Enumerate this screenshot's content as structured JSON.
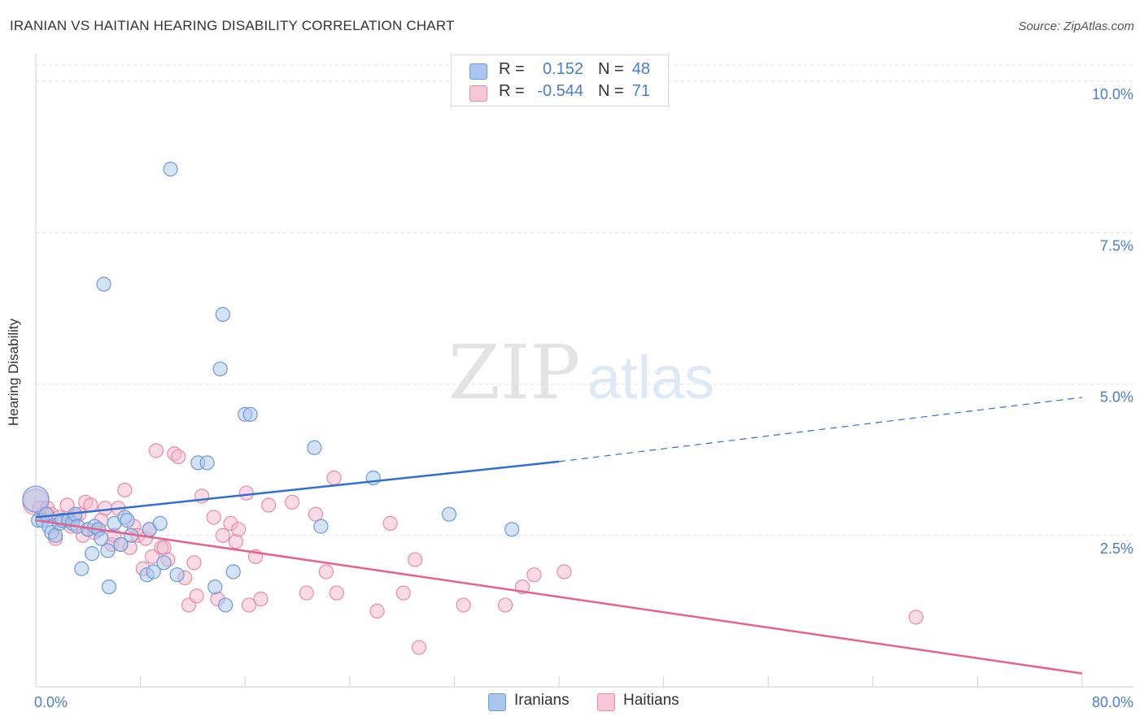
{
  "header": {
    "title": "IRANIAN VS HAITIAN HEARING DISABILITY CORRELATION CHART",
    "source": "Source: ZipAtlas.com"
  },
  "watermark": {
    "zip": "ZIP",
    "atlas": "atlas"
  },
  "colors": {
    "blue_fill": "#a9c6ee",
    "blue_stroke": "#6b9ad8",
    "blue_line": "#2e6fd0",
    "pink_fill": "#f6b8cb",
    "pink_stroke": "#e88aa8",
    "pink_line": "#e4628f",
    "tick_text": "#4a7cc8",
    "grid": "#e1e1e1"
  },
  "legend": {
    "rows": [
      {
        "r_label": "R =",
        "r_value": "0.152",
        "n_label": "N =",
        "n_value": "48",
        "series": "Iranians"
      },
      {
        "r_label": "R =",
        "r_value": "-0.544",
        "n_label": "N =",
        "n_value": "71",
        "series": "Haitians"
      }
    ],
    "bottom": [
      "Iranians",
      "Haitians"
    ]
  },
  "chart_data": {
    "type": "scatter",
    "title": "IRANIAN VS HAITIAN HEARING DISABILITY CORRELATION CHART",
    "xlabel": "",
    "ylabel": "Hearing Disability",
    "xlim": [
      0,
      80
    ],
    "ylim": [
      0,
      10.5
    ],
    "x_tick_labels": [
      "0.0%",
      "80.0%"
    ],
    "y_ticks": [
      2.5,
      5.0,
      7.5,
      10.0
    ],
    "y_tick_labels": [
      "2.5%",
      "5.0%",
      "7.5%",
      "10.0%"
    ],
    "grid": true,
    "legend_position": "top-center",
    "series": [
      {
        "name": "Iranians",
        "r": 0.152,
        "n": 48,
        "trend": {
          "x0": 0,
          "y0": 2.8,
          "x1": 40,
          "y1": 3.72,
          "dash_x1": 80,
          "dash_y1": 4.78
        },
        "points": [
          [
            0.0,
            3.1
          ],
          [
            0.2,
            2.75
          ],
          [
            0.5,
            2.75
          ],
          [
            1.0,
            2.65
          ],
          [
            1.2,
            2.55
          ],
          [
            1.5,
            2.5
          ],
          [
            1.8,
            2.7
          ],
          [
            2.0,
            2.75
          ],
          [
            2.5,
            2.75
          ],
          [
            2.8,
            2.7
          ],
          [
            3.0,
            2.85
          ],
          [
            3.2,
            2.65
          ],
          [
            3.5,
            1.95
          ],
          [
            4.0,
            2.6
          ],
          [
            4.3,
            2.2
          ],
          [
            4.5,
            2.65
          ],
          [
            4.8,
            2.6
          ],
          [
            5.0,
            2.45
          ],
          [
            5.2,
            6.65
          ],
          [
            5.5,
            2.25
          ],
          [
            5.6,
            1.65
          ],
          [
            6.0,
            2.7
          ],
          [
            6.5,
            2.35
          ],
          [
            6.8,
            2.8
          ],
          [
            7.0,
            2.75
          ],
          [
            7.3,
            2.5
          ],
          [
            8.5,
            1.85
          ],
          [
            8.7,
            2.6
          ],
          [
            9.0,
            1.9
          ],
          [
            9.5,
            2.7
          ],
          [
            9.8,
            2.05
          ],
          [
            10.3,
            8.55
          ],
          [
            10.8,
            1.85
          ],
          [
            12.4,
            3.7
          ],
          [
            13.1,
            3.7
          ],
          [
            13.7,
            1.65
          ],
          [
            14.1,
            5.25
          ],
          [
            14.3,
            6.15
          ],
          [
            14.5,
            1.35
          ],
          [
            15.1,
            1.9
          ],
          [
            16.0,
            4.5
          ],
          [
            16.4,
            4.5
          ],
          [
            21.3,
            3.95
          ],
          [
            21.8,
            2.65
          ],
          [
            25.8,
            3.45
          ],
          [
            31.6,
            2.85
          ],
          [
            36.4,
            2.6
          ],
          [
            0.8,
            2.85
          ]
        ]
      },
      {
        "name": "Haitians",
        "r": -0.544,
        "n": 71,
        "trend": {
          "x0": 0,
          "y0": 2.75,
          "x1": 80,
          "y1": 0.22
        },
        "points": [
          [
            0.0,
            3.05
          ],
          [
            0.3,
            2.95
          ],
          [
            0.6,
            2.85
          ],
          [
            0.9,
            2.95
          ],
          [
            1.2,
            2.85
          ],
          [
            1.5,
            2.45
          ],
          [
            1.8,
            2.8
          ],
          [
            2.1,
            2.75
          ],
          [
            2.4,
            3.0
          ],
          [
            2.7,
            2.65
          ],
          [
            3.0,
            2.8
          ],
          [
            3.3,
            2.85
          ],
          [
            3.6,
            2.5
          ],
          [
            3.8,
            3.05
          ],
          [
            4.0,
            2.6
          ],
          [
            4.2,
            3.0
          ],
          [
            4.5,
            2.55
          ],
          [
            4.8,
            2.6
          ],
          [
            5.0,
            2.75
          ],
          [
            5.3,
            2.95
          ],
          [
            5.8,
            2.35
          ],
          [
            6.0,
            2.5
          ],
          [
            6.3,
            2.95
          ],
          [
            6.5,
            2.35
          ],
          [
            6.8,
            3.25
          ],
          [
            7.2,
            2.3
          ],
          [
            7.5,
            2.65
          ],
          [
            7.8,
            2.5
          ],
          [
            8.2,
            1.95
          ],
          [
            8.4,
            2.45
          ],
          [
            8.7,
            2.6
          ],
          [
            8.9,
            2.15
          ],
          [
            9.2,
            3.9
          ],
          [
            9.6,
            2.3
          ],
          [
            9.8,
            2.3
          ],
          [
            10.1,
            2.1
          ],
          [
            10.6,
            3.85
          ],
          [
            10.9,
            3.8
          ],
          [
            11.4,
            1.8
          ],
          [
            11.7,
            1.35
          ],
          [
            12.1,
            2.05
          ],
          [
            12.3,
            1.5
          ],
          [
            12.7,
            3.15
          ],
          [
            13.6,
            2.8
          ],
          [
            13.9,
            1.45
          ],
          [
            14.3,
            2.5
          ],
          [
            14.9,
            2.7
          ],
          [
            15.3,
            2.4
          ],
          [
            15.5,
            2.6
          ],
          [
            16.1,
            3.2
          ],
          [
            16.3,
            1.35
          ],
          [
            16.8,
            2.15
          ],
          [
            17.2,
            1.45
          ],
          [
            17.8,
            3.0
          ],
          [
            19.6,
            3.05
          ],
          [
            20.7,
            1.55
          ],
          [
            21.4,
            2.85
          ],
          [
            22.2,
            1.9
          ],
          [
            22.8,
            3.45
          ],
          [
            23.0,
            1.55
          ],
          [
            26.1,
            1.25
          ],
          [
            27.1,
            2.7
          ],
          [
            28.1,
            1.55
          ],
          [
            29.0,
            2.1
          ],
          [
            29.3,
            0.65
          ],
          [
            32.7,
            1.35
          ],
          [
            35.9,
            1.35
          ],
          [
            37.2,
            1.65
          ],
          [
            38.1,
            1.85
          ],
          [
            40.4,
            1.9
          ],
          [
            67.3,
            1.15
          ]
        ]
      }
    ]
  }
}
